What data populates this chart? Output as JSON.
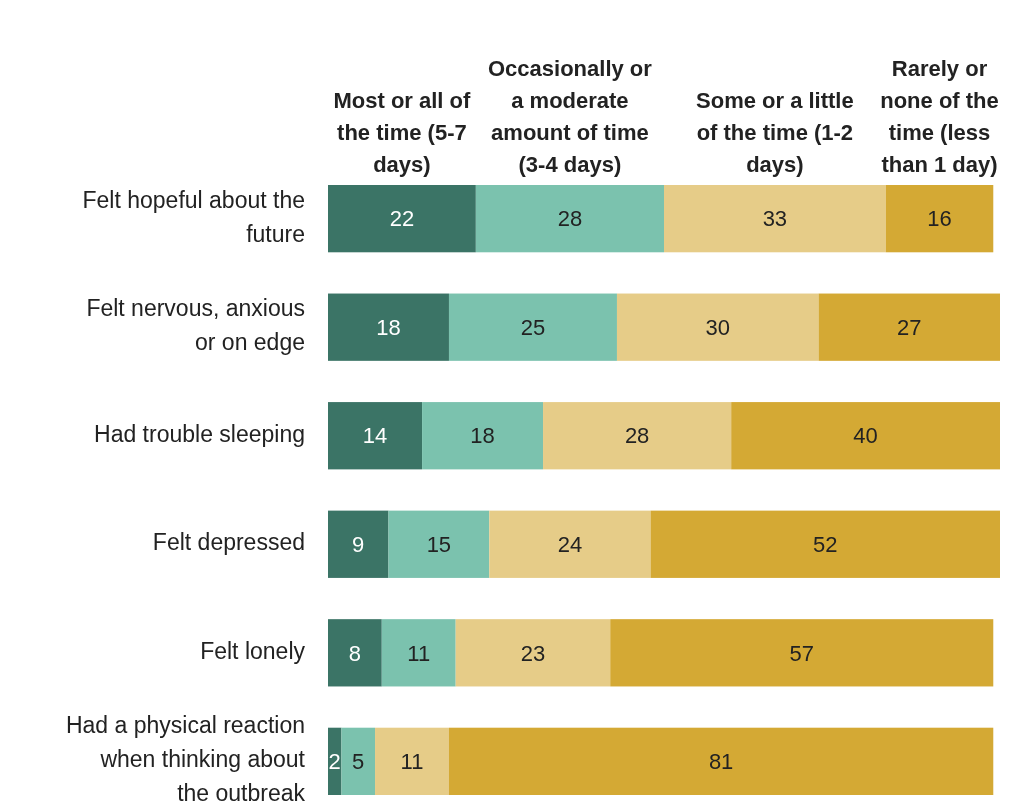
{
  "chart_data": {
    "type": "bar",
    "orientation": "horizontal",
    "stacked": true,
    "data_labels": true,
    "legend": "top",
    "categories": [
      "Felt hopeful about the future",
      "Felt nervous, anxious or on edge",
      "Had trouble sleeping",
      "Felt depressed",
      "Felt lonely",
      "Had a physical reaction when thinking about the outbreak"
    ],
    "series": [
      {
        "name": "Most or all of the time (5-7 days)",
        "color": "#3b7466",
        "values": [
          22,
          18,
          14,
          9,
          8,
          2
        ]
      },
      {
        "name": "Occasionally or a moderate amount of time (3-4 days)",
        "color": "#7bc2ae",
        "values": [
          28,
          25,
          18,
          15,
          11,
          5
        ]
      },
      {
        "name": "Some or a little of the time (1-2 days)",
        "color": "#e6cc88",
        "values": [
          33,
          30,
          28,
          24,
          23,
          11
        ]
      },
      {
        "name": "Rarely or none of the time (less than 1 day)",
        "color": "#d4a934",
        "values": [
          16,
          27,
          40,
          52,
          57,
          81
        ]
      }
    ]
  }
}
